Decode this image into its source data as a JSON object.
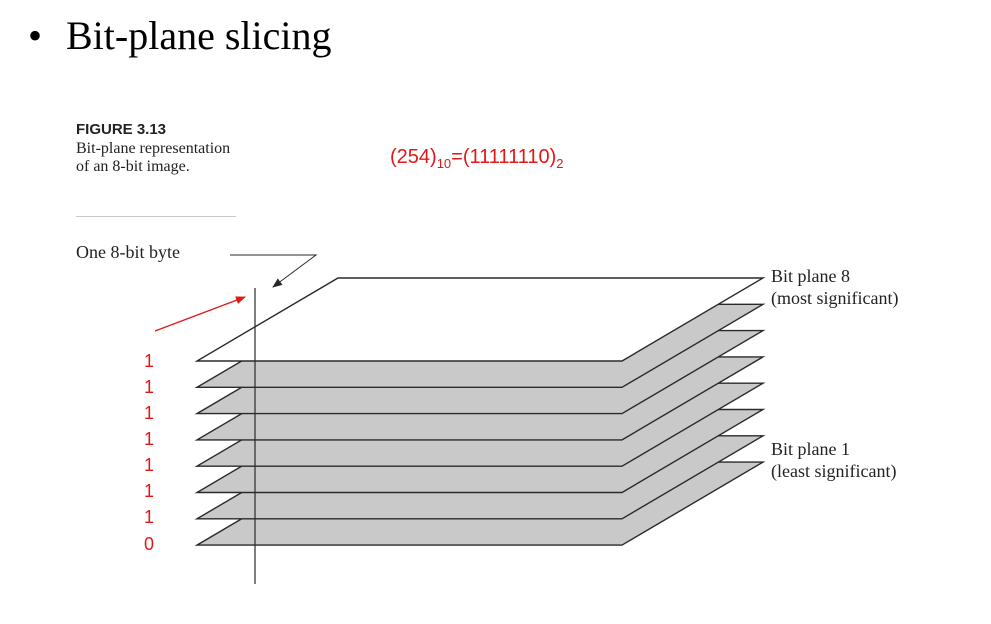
{
  "slide": {
    "bullet_char": "•",
    "title": "Bit-plane slicing"
  },
  "figure": {
    "label": "FIGURE 3.13",
    "caption": "Bit-plane representation of an 8-bit image."
  },
  "annotation": {
    "formula_open": "(254)",
    "formula_base_decimal": "10",
    "formula_middle": "=(11111110)",
    "formula_base_binary": "2",
    "bits": [
      "1",
      "1",
      "1",
      "1",
      "1",
      "1",
      "1",
      "0"
    ]
  },
  "diagram": {
    "byte_label": "One 8-bit byte",
    "top_plane_label": "Bit plane 8",
    "top_plane_sublabel": "(most significant)",
    "bottom_plane_label": "Bit plane 1",
    "bottom_plane_sublabel": "(least significant)",
    "plane_count": 8,
    "colors": {
      "top_plane_fill": "#ffffff",
      "plane_fill": "#c9c9c9",
      "plane_stroke": "#2a2a2a",
      "annotation_red": "#e01818"
    }
  }
}
